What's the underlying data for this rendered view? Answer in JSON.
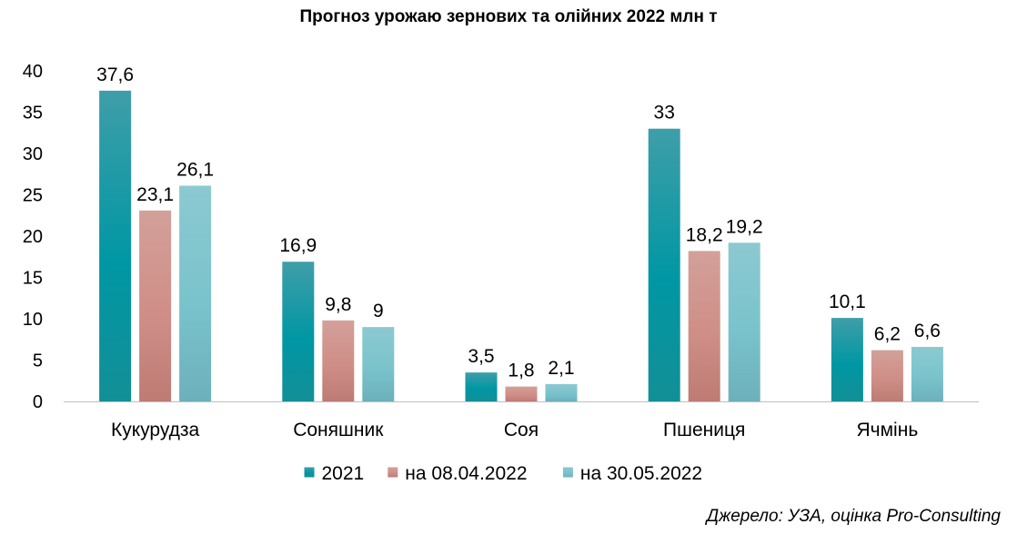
{
  "chart_data": {
    "type": "bar",
    "title": "Прогноз урожаю зернових та олійних 2022 млн т",
    "categories": [
      "Кукурудза",
      "Соняшник",
      "Соя",
      "Пшениця",
      "Ячмінь"
    ],
    "series": [
      {
        "name": "2021",
        "values": [
          37.6,
          16.9,
          3.5,
          33,
          10.1
        ],
        "labels": [
          "37,6",
          "16,9",
          "3,5",
          "33",
          "10,1"
        ],
        "color": "#14959b"
      },
      {
        "name": "на 08.04.2022",
        "values": [
          23.1,
          9.8,
          1.8,
          18.2,
          6.2
        ],
        "labels": [
          "23,1",
          "9,8",
          "1,8",
          "18,2",
          "6,2"
        ],
        "color": "#c8837b"
      },
      {
        "name": "на 30.05.2022",
        "values": [
          26.1,
          9,
          2.1,
          19.2,
          6.6
        ],
        "labels": [
          "26,1",
          "9",
          "2,1",
          "19,2",
          "6,6"
        ],
        "color": "#7cc2cb"
      }
    ],
    "yticks": [
      0,
      5,
      10,
      15,
      20,
      25,
      30,
      35,
      40
    ],
    "ylim": [
      0,
      40
    ],
    "xlabel": "",
    "ylabel": "",
    "grid": false,
    "legend": "bottom"
  },
  "source": "Джерело: УЗА, оцінка Pro-Consulting"
}
